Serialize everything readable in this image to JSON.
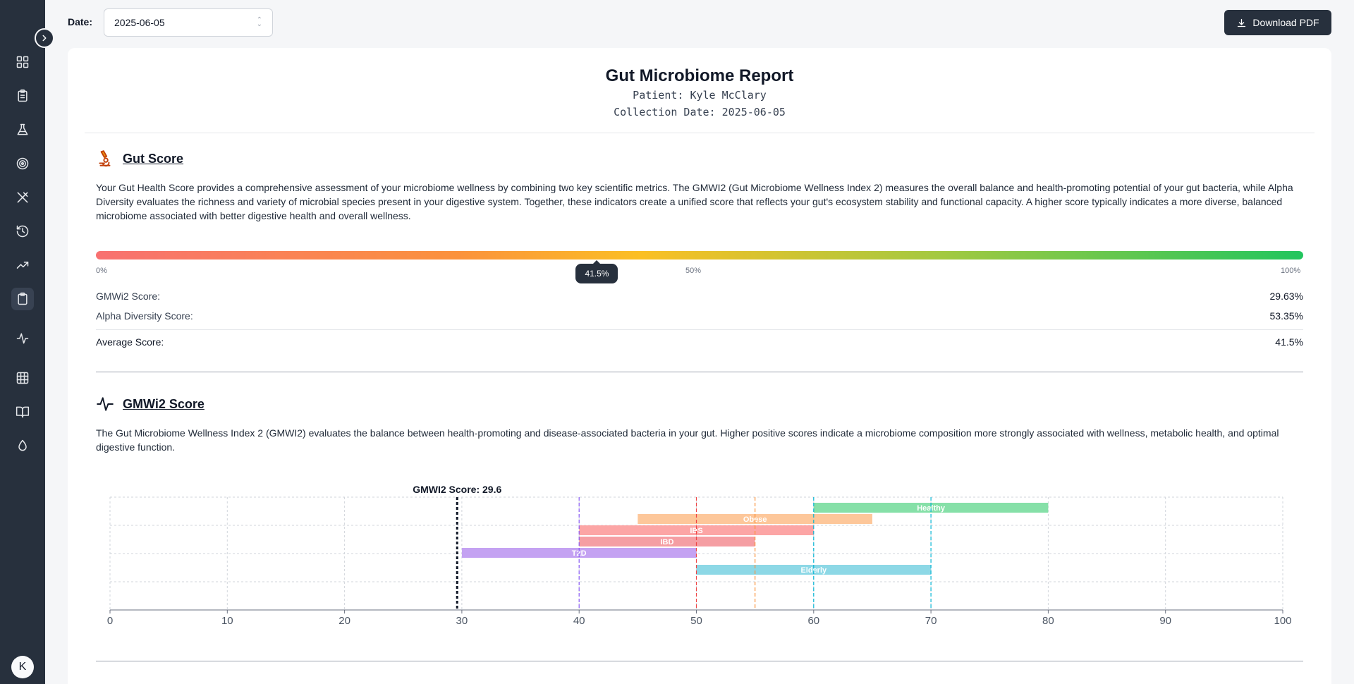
{
  "sidebar": {
    "icons": [
      "dashboard-icon",
      "clipboard-list-icon",
      "flask-icon",
      "target-icon",
      "utensils-icon",
      "history-icon",
      "trending-up-icon",
      "clipboard-icon",
      "activity-icon",
      "grid-icon",
      "book-open-icon",
      "droplet-icon"
    ],
    "avatar_initial": "K"
  },
  "topbar": {
    "date_label": "Date:",
    "date_value": "2025-06-05",
    "download_label": "Download PDF"
  },
  "report": {
    "title": "Gut Microbiome Report",
    "patient": "Patient: Kyle McClary",
    "collection_date": "Collection Date: 2025-06-05"
  },
  "gut_score": {
    "title": "Gut Score",
    "description": "Your Gut Health Score provides a comprehensive assessment of your microbiome wellness by combining two key scientific metrics. The GMWI2 (Gut Microbiome Wellness Index 2) measures the overall balance and health-promoting potential of your gut bacteria, while Alpha Diversity evaluates the richness and variety of microbial species present in your digestive system. Together, these indicators create a unified score that reflects your gut's ecosystem stability and functional capacity. A higher score typically indicates a more diverse, balanced microbiome associated with better digestive health and overall wellness.",
    "scale_min": "0%",
    "scale_mid": "50%",
    "scale_max": "100%",
    "score_fraction": 0.415,
    "score_label": "41.5%",
    "rows": [
      {
        "label": "GMWi2 Score:",
        "value": "29.63%"
      },
      {
        "label": "Alpha Diversity Score:",
        "value": "53.35%"
      }
    ],
    "average_label": "Average Score:",
    "average_value": "41.5%"
  },
  "gmwi2": {
    "title": "GMWi2 Score",
    "description": "The Gut Microbiome Wellness Index 2 (GMWI2) evaluates the balance between health-promoting and disease-associated bacteria in your gut. Higher positive scores indicate a microbiome composition more strongly associated with wellness, metabolic health, and optimal digestive function."
  },
  "chart_data": {
    "type": "bar",
    "orientation": "horizontal-range",
    "score_label": "GMWI2 Score: 29.6",
    "score_value": 29.6,
    "xlim": [
      0,
      100
    ],
    "x_ticks": [
      0,
      10,
      20,
      30,
      40,
      50,
      60,
      70,
      80,
      90,
      100
    ],
    "ranges": [
      {
        "name": "Healthy",
        "start": 60,
        "end": 80,
        "color": "#86e0a8",
        "marker_color": "#06b6d4",
        "markers": [
          60,
          70
        ]
      },
      {
        "name": "Obese",
        "start": 45,
        "end": 65,
        "color": "#fdc79a",
        "marker_color": "#fb923c",
        "markers": [
          55
        ]
      },
      {
        "name": "IBS",
        "start": 40,
        "end": 60,
        "color": "#fca5a5",
        "marker_color": "#ef4444",
        "markers": [
          50
        ]
      },
      {
        "name": "IBD",
        "start": 40,
        "end": 55,
        "color": "#f59ea3",
        "marker_color": "#ef4444",
        "markers": []
      },
      {
        "name": "T2D",
        "start": 30,
        "end": 50,
        "color": "#c4a2f2",
        "marker_color": "#8b5cf6",
        "markers": [
          40
        ]
      },
      {
        "name": "Elderly",
        "start": 50,
        "end": 70,
        "color": "#8dd8e6",
        "marker_color": "#06b6d4",
        "markers": []
      }
    ]
  },
  "colors": {
    "sidebar_bg": "#27303d",
    "accent_dark": "#27303d",
    "page_bg": "#f5f6f8"
  }
}
